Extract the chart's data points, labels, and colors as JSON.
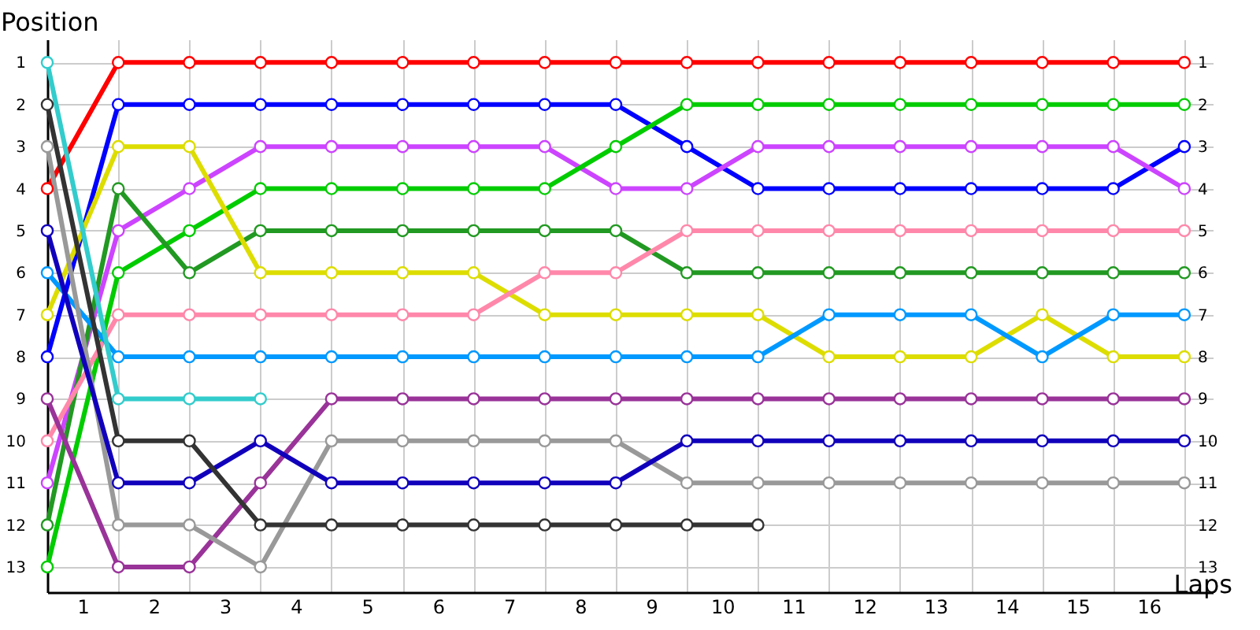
{
  "chart_data": {
    "type": "line",
    "xlabel": "Laps",
    "ylabel": "Position",
    "x": [
      0,
      1,
      2,
      3,
      4,
      5,
      6,
      7,
      8,
      9,
      10,
      11,
      12,
      13,
      14,
      15,
      16
    ],
    "xlim": [
      0,
      16.4
    ],
    "xticks": [
      {
        "value": 0,
        "label": null
      },
      {
        "value": 0.5,
        "label": "1"
      },
      {
        "value": 1,
        "label": null
      },
      {
        "value": 1.5,
        "label": "2"
      },
      {
        "value": 2,
        "label": null
      },
      {
        "value": 2.5,
        "label": "3"
      },
      {
        "value": 3,
        "label": null
      },
      {
        "value": 3.5,
        "label": "4"
      },
      {
        "value": 4,
        "label": null
      },
      {
        "value": 4.5,
        "label": "5"
      },
      {
        "value": 5,
        "label": null
      },
      {
        "value": 5.5,
        "label": "6"
      },
      {
        "value": 6,
        "label": null
      },
      {
        "value": 6.5,
        "label": "7"
      },
      {
        "value": 7,
        "label": null
      },
      {
        "value": 7.5,
        "label": "8"
      },
      {
        "value": 8,
        "label": null
      },
      {
        "value": 8.5,
        "label": "9"
      },
      {
        "value": 9,
        "label": null
      },
      {
        "value": 9.5,
        "label": "10"
      },
      {
        "value": 10,
        "label": null
      },
      {
        "value": 10.5,
        "label": "11"
      },
      {
        "value": 11,
        "label": null
      },
      {
        "value": 11.5,
        "label": "12"
      },
      {
        "value": 12,
        "label": null
      },
      {
        "value": 12.5,
        "label": "13"
      },
      {
        "value": 13,
        "label": null
      },
      {
        "value": 13.5,
        "label": "14"
      },
      {
        "value": 14,
        "label": null
      },
      {
        "value": 14.5,
        "label": "15"
      },
      {
        "value": 15,
        "label": null
      },
      {
        "value": 15.5,
        "label": "16"
      },
      {
        "value": 16,
        "label": null
      }
    ],
    "ylim": [
      13.6,
      0.45
    ],
    "yticks": [
      1,
      2,
      3,
      4,
      5,
      6,
      7,
      8,
      9,
      10,
      11,
      12,
      13
    ],
    "y2lim": [
      13.6,
      0.45
    ],
    "y2ticks": [
      1,
      2,
      3,
      4,
      5,
      6,
      7,
      8,
      9,
      10,
      11,
      12,
      13
    ],
    "grid": true,
    "legend": false,
    "marker": "circle",
    "line_style": "solid",
    "series": [
      {
        "color": "#ff0000",
        "values": [
          4,
          1,
          1,
          1,
          1,
          1,
          1,
          1,
          1,
          1,
          1,
          1,
          1,
          1,
          1,
          1,
          1
        ]
      },
      {
        "color": "#0000ff",
        "values": [
          8,
          2,
          2,
          2,
          2,
          2,
          2,
          2,
          2,
          3,
          4,
          4,
          4,
          4,
          4,
          4,
          3
        ]
      },
      {
        "color": "#cc44ff",
        "values": [
          11,
          5,
          4,
          3,
          3,
          3,
          3,
          3,
          4,
          4,
          3,
          3,
          3,
          3,
          3,
          3,
          4
        ]
      },
      {
        "color": "#00cc00",
        "values": [
          13,
          6,
          5,
          4,
          4,
          4,
          4,
          4,
          3,
          2,
          2,
          2,
          2,
          2,
          2,
          2,
          2
        ]
      },
      {
        "color": "#229922",
        "values": [
          12,
          4,
          6,
          5,
          5,
          5,
          5,
          5,
          5,
          6,
          6,
          6,
          6,
          6,
          6,
          6,
          6
        ]
      },
      {
        "color": "#dddd00",
        "values": [
          7,
          3,
          3,
          6,
          6,
          6,
          6,
          7,
          7,
          7,
          7,
          8,
          8,
          8,
          7,
          8,
          8
        ]
      },
      {
        "color": "#ff88aa",
        "values": [
          10,
          7,
          7,
          7,
          7,
          7,
          7,
          6,
          6,
          5,
          5,
          5,
          5,
          5,
          5,
          5,
          5
        ]
      },
      {
        "color": "#0099ff",
        "values": [
          6,
          8,
          8,
          8,
          8,
          8,
          8,
          8,
          8,
          8,
          8,
          7,
          7,
          7,
          8,
          7,
          7
        ]
      },
      {
        "color": "#33cccc",
        "values": [
          1,
          9,
          9,
          9,
          null,
          null,
          null,
          null,
          null,
          null,
          null,
          null,
          null,
          null,
          null,
          null,
          null
        ]
      },
      {
        "color": "#993399",
        "values": [
          9,
          13,
          13,
          11,
          9,
          9,
          9,
          9,
          9,
          9,
          9,
          9,
          9,
          9,
          9,
          9,
          9
        ]
      },
      {
        "color": "#999999",
        "values": [
          3,
          12,
          12,
          13,
          10,
          10,
          10,
          10,
          10,
          11,
          11,
          11,
          11,
          11,
          11,
          11,
          11
        ]
      },
      {
        "color": "#1100bb",
        "values": [
          5,
          11,
          11,
          10,
          11,
          11,
          11,
          11,
          11,
          10,
          10,
          10,
          10,
          10,
          10,
          10,
          10
        ]
      },
      {
        "color": "#333333",
        "values": [
          2,
          10,
          10,
          12,
          12,
          12,
          12,
          12,
          12,
          12,
          12,
          null,
          null,
          null,
          null,
          null,
          null
        ]
      }
    ]
  }
}
